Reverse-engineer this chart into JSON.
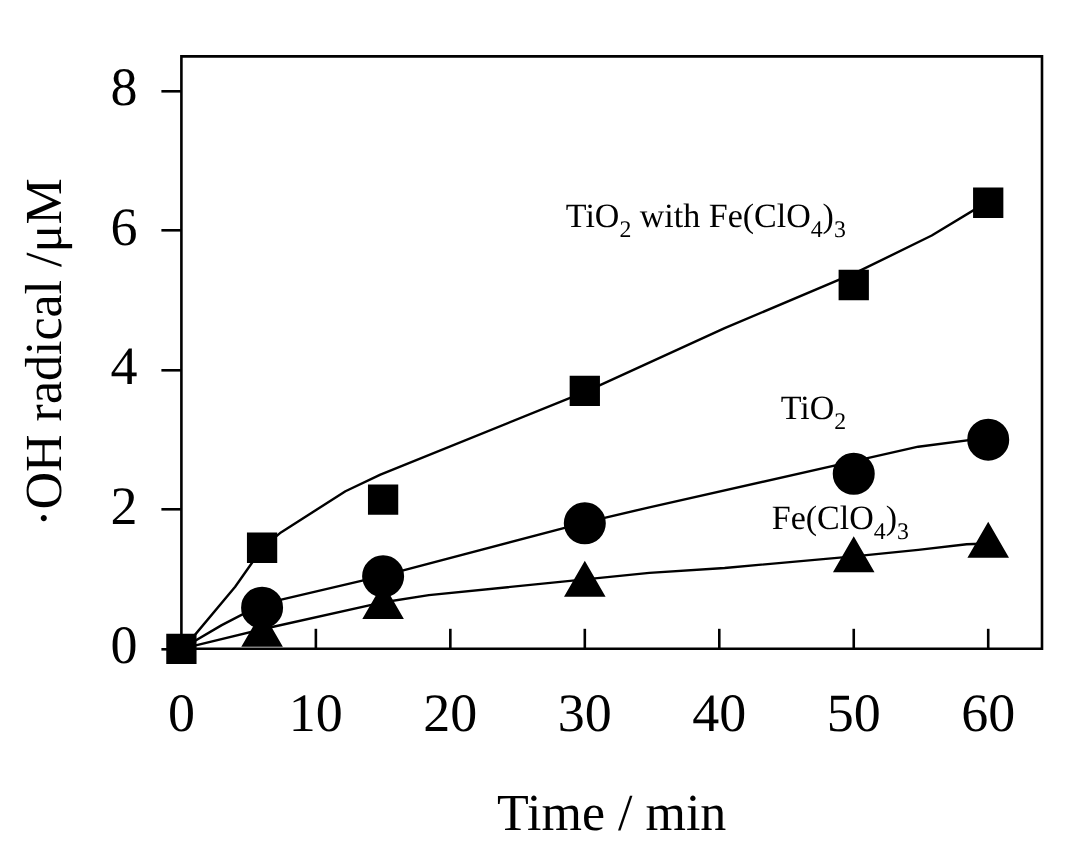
{
  "chart_data": {
    "type": "scatter",
    "xlabel": "Time / min",
    "ylabel": "·OH radical /μM",
    "xlim": [
      0,
      64
    ],
    "ylim": [
      0,
      8.5
    ],
    "xticks": [
      0,
      10,
      20,
      30,
      40,
      50,
      60
    ],
    "yticks": [
      0,
      2,
      4,
      6,
      8
    ],
    "grid": false,
    "legend": false,
    "series": [
      {
        "name": "TiO$_{2}$ with Fe(ClO$_{4}$)$_{3}$",
        "marker": "square",
        "color": "#000000",
        "x": [
          0,
          6,
          15,
          30,
          50,
          60
        ],
        "values": [
          0,
          1.45,
          2.14,
          3.7,
          5.22,
          6.4
        ]
      },
      {
        "name": "TiO$_{2}$",
        "marker": "circle",
        "color": "#000000",
        "x": [
          6,
          15,
          30,
          50,
          60
        ],
        "values": [
          0.59,
          1.04,
          1.8,
          2.51,
          3.0
        ]
      },
      {
        "name": "Fe(ClO$_{4}$)$_{3}$",
        "marker": "triangle",
        "color": "#000000",
        "x": [
          6,
          15,
          30,
          50,
          60
        ],
        "values": [
          0.2,
          0.6,
          0.92,
          1.27,
          1.48
        ]
      },
      {
        "type": "line",
        "marker": "none",
        "color": "#000000",
        "x": [
          0,
          0.4,
          4,
          6,
          7.4,
          12.2,
          14.8,
          30.2,
          40.4,
          50.2,
          55.8,
          60
        ],
        "values": [
          0,
          0.06,
          0.89,
          1.44,
          1.67,
          2.26,
          2.5,
          3.7,
          4.6,
          5.4,
          5.93,
          6.42
        ]
      },
      {
        "type": "line",
        "marker": "none",
        "color": "#000000",
        "x": [
          0,
          3,
          6,
          14.8,
          30.2,
          34.8,
          50.2,
          54.8,
          60
        ],
        "values": [
          0,
          0.34,
          0.64,
          1.04,
          1.82,
          2.03,
          2.7,
          2.9,
          3.03
        ]
      },
      {
        "type": "line",
        "marker": "none",
        "color": "#000000",
        "x": [
          0,
          6,
          14.8,
          18.4,
          30.2,
          34.8,
          40.4,
          50.2,
          54.8,
          58.4,
          60
        ],
        "values": [
          0,
          0.28,
          0.66,
          0.77,
          1.0,
          1.09,
          1.16,
          1.33,
          1.42,
          1.5,
          1.51
        ]
      }
    ]
  }
}
